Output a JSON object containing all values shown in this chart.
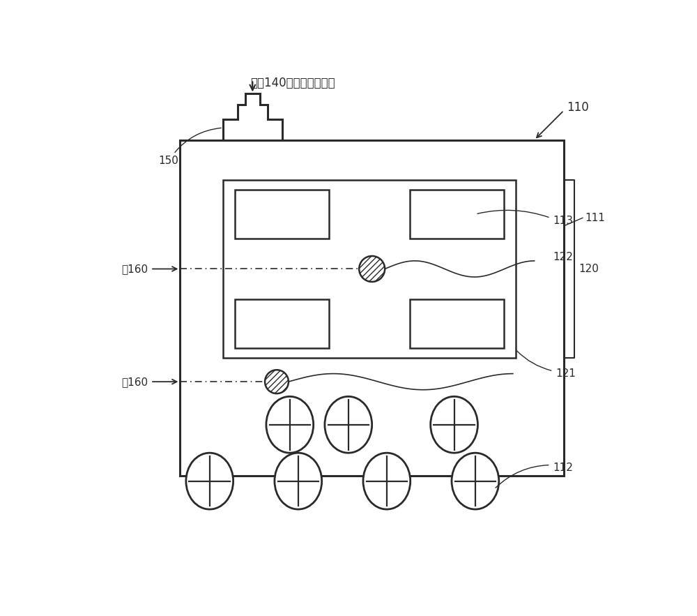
{
  "bg_color": "#ffffff",
  "line_color": "#2a2a2a",
  "title_text": "来自140的经压缩的空气",
  "label_110": "110",
  "label_111": "111",
  "label_112": "112",
  "label_113": "113",
  "label_120": "120",
  "label_121": "121",
  "label_122": "122",
  "label_150": "150",
  "label_to160_1": "至160",
  "label_to160_2": "至160",
  "fig_width": 10.0,
  "fig_height": 8.83
}
